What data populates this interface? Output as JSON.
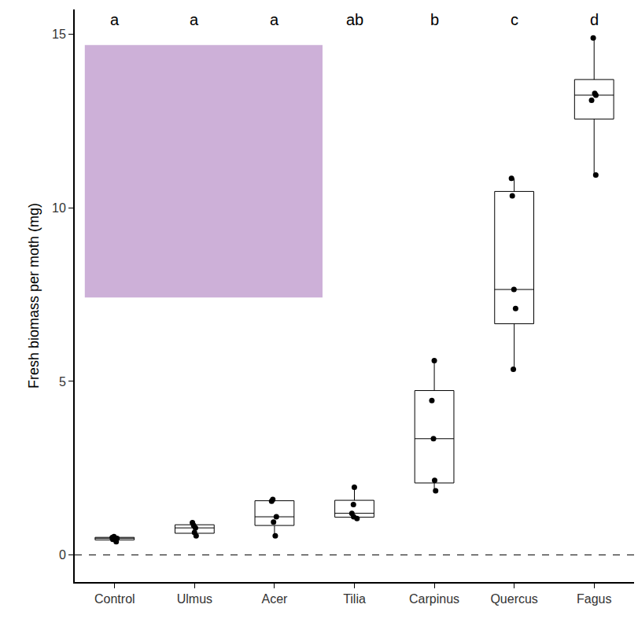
{
  "chart_data": {
    "type": "box",
    "y_label": "Fresh biomass per moth (mg)",
    "categories": [
      "Control",
      "Ulmus",
      "Acer",
      "Tilia",
      "Carpinus",
      "Quercus",
      "Fagus"
    ],
    "values": [
      [
        0.38,
        0.45,
        0.48,
        0.5,
        0.53
      ],
      [
        0.55,
        0.65,
        0.78,
        0.85,
        0.93
      ],
      [
        0.55,
        0.95,
        1.1,
        1.55,
        1.6
      ],
      [
        1.05,
        1.1,
        1.2,
        1.45,
        1.95
      ],
      [
        1.85,
        2.15,
        3.35,
        4.45,
        5.6
      ],
      [
        5.35,
        7.1,
        7.65,
        10.35,
        10.85
      ],
      [
        10.95,
        13.1,
        13.25,
        13.3,
        14.9
      ]
    ],
    "annotations": [
      "a",
      "a",
      "a",
      "ab",
      "b",
      "c",
      "d"
    ],
    "reference_line": 0,
    "color": "#000000",
    "ylim": [
      -0.78,
      15.72
    ],
    "yticks": [
      0,
      5,
      10,
      15
    ],
    "grid": false
  }
}
